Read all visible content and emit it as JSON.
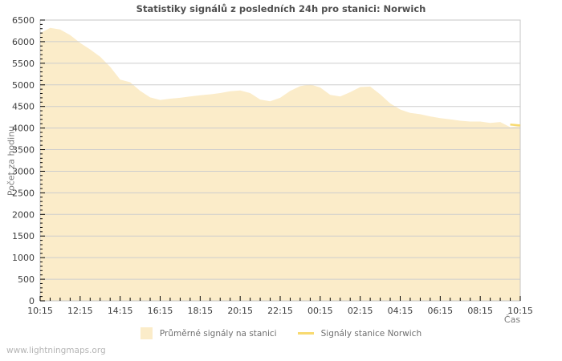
{
  "title": "Statistiky signálů z posledních 24h pro stanici: Norwich",
  "watermark": "www.lightningmaps.org",
  "legend": {
    "area_label": "Průměrné signály na stanici",
    "line_label": "Signály stanice Norwich"
  },
  "colors": {
    "area_fill": "#fbecc9",
    "line": "#f8da70",
    "grid": "#cdcdcd",
    "border": "#c6c6c6",
    "tick": "#000000",
    "tick_label": "#3d3d3d"
  },
  "chart_data": {
    "type": "area",
    "title": "Statistiky signálů z posledních 24h pro stanici: Norwich",
    "xlabel": "Čas",
    "ylabel": "Počet za hodinu",
    "ylim": [
      0,
      6500
    ],
    "y_tick_step": 500,
    "y_minor_step": 100,
    "x_minor_step_minutes": 30,
    "grid": true,
    "legend_position": "bottom",
    "x_tick_labels": [
      "10:15",
      "12:15",
      "14:15",
      "16:15",
      "18:15",
      "20:15",
      "22:15",
      "00:15",
      "02:15",
      "04:15",
      "06:15",
      "08:15",
      "10:15"
    ],
    "x": [
      "10:15",
      "10:45",
      "11:15",
      "11:45",
      "12:15",
      "12:45",
      "13:15",
      "13:45",
      "14:15",
      "14:45",
      "15:15",
      "15:45",
      "16:15",
      "16:45",
      "17:15",
      "17:45",
      "18:15",
      "18:45",
      "19:15",
      "19:45",
      "20:15",
      "20:45",
      "21:15",
      "21:45",
      "22:15",
      "22:45",
      "23:15",
      "23:45",
      "00:15",
      "00:45",
      "01:15",
      "01:45",
      "02:15",
      "02:45",
      "03:15",
      "03:45",
      "04:15",
      "04:45",
      "05:15",
      "05:45",
      "06:15",
      "06:45",
      "07:15",
      "07:45",
      "08:15",
      "08:45",
      "09:15",
      "09:45",
      "10:15"
    ],
    "series": [
      {
        "name": "Průměrné signály na stanici",
        "type": "area",
        "color": "#fbecc9",
        "values": [
          6200,
          6320,
          6280,
          6150,
          5970,
          5820,
          5650,
          5420,
          5120,
          5060,
          4860,
          4710,
          4650,
          4680,
          4700,
          4730,
          4760,
          4780,
          4810,
          4850,
          4870,
          4810,
          4660,
          4620,
          4700,
          4860,
          4970,
          5010,
          4940,
          4770,
          4730,
          4830,
          4950,
          4960,
          4780,
          4570,
          4430,
          4350,
          4320,
          4270,
          4230,
          4200,
          4170,
          4150,
          4150,
          4120,
          4140,
          4020,
          4050
        ]
      },
      {
        "name": "Signály stanice Norwich",
        "type": "line",
        "color": "#f8da70",
        "values": [
          null,
          null,
          null,
          null,
          null,
          null,
          null,
          null,
          null,
          null,
          null,
          null,
          null,
          null,
          null,
          null,
          null,
          null,
          null,
          null,
          null,
          null,
          null,
          null,
          null,
          null,
          null,
          null,
          null,
          null,
          null,
          null,
          null,
          null,
          null,
          null,
          null,
          null,
          null,
          null,
          null,
          null,
          null,
          null,
          null,
          null,
          null,
          4080,
          4060
        ]
      }
    ]
  }
}
